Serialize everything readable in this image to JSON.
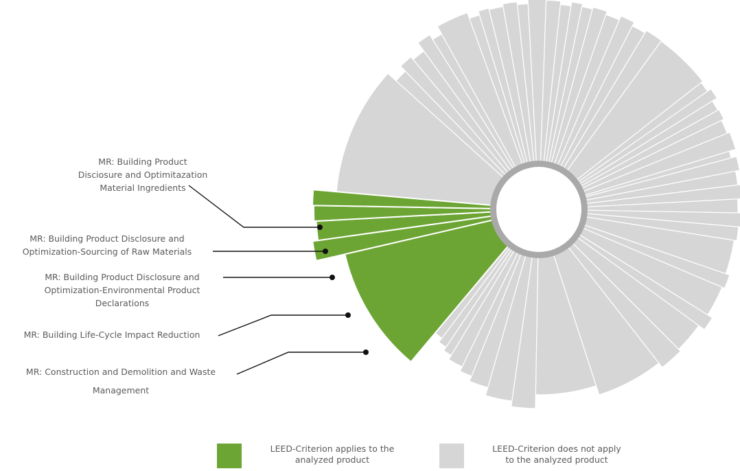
{
  "chart_data": {
    "type": "pie",
    "variant": "radial-segment-diagram",
    "applies_color": "#6da534",
    "not_applies_color": "#d6d6d6",
    "ring_color": "#a9a9a9",
    "applicable_criteria": [
      {
        "label": [
          "MR: Building Product",
          "Disciosure and Optimitazation",
          "Material Ingredients"
        ],
        "applies": true
      },
      {
        "label": [
          "MR: Building Product Disclosure and",
          "Optimization-Sourcing of Raw Materials"
        ],
        "applies": true
      },
      {
        "label": [
          "MR: Building Product Disclosure and",
          "Optimization-Environmental Product",
          "Declarations"
        ],
        "applies": true
      },
      {
        "label": [
          "MR: Building Life-Cycle Impact Reduction"
        ],
        "applies": true
      },
      {
        "label": [
          "MR: Construction and Demolition and Waste",
          "Management"
        ],
        "applies": true
      }
    ],
    "legend": [
      {
        "label": [
          "LEED-Criterion applies to the",
          "analyzed product"
        ],
        "color": "#6da534"
      },
      {
        "label": [
          "LEED-Criterion does not apply",
          "to the analyzed product"
        ],
        "color": "#d6d6d6"
      }
    ]
  }
}
